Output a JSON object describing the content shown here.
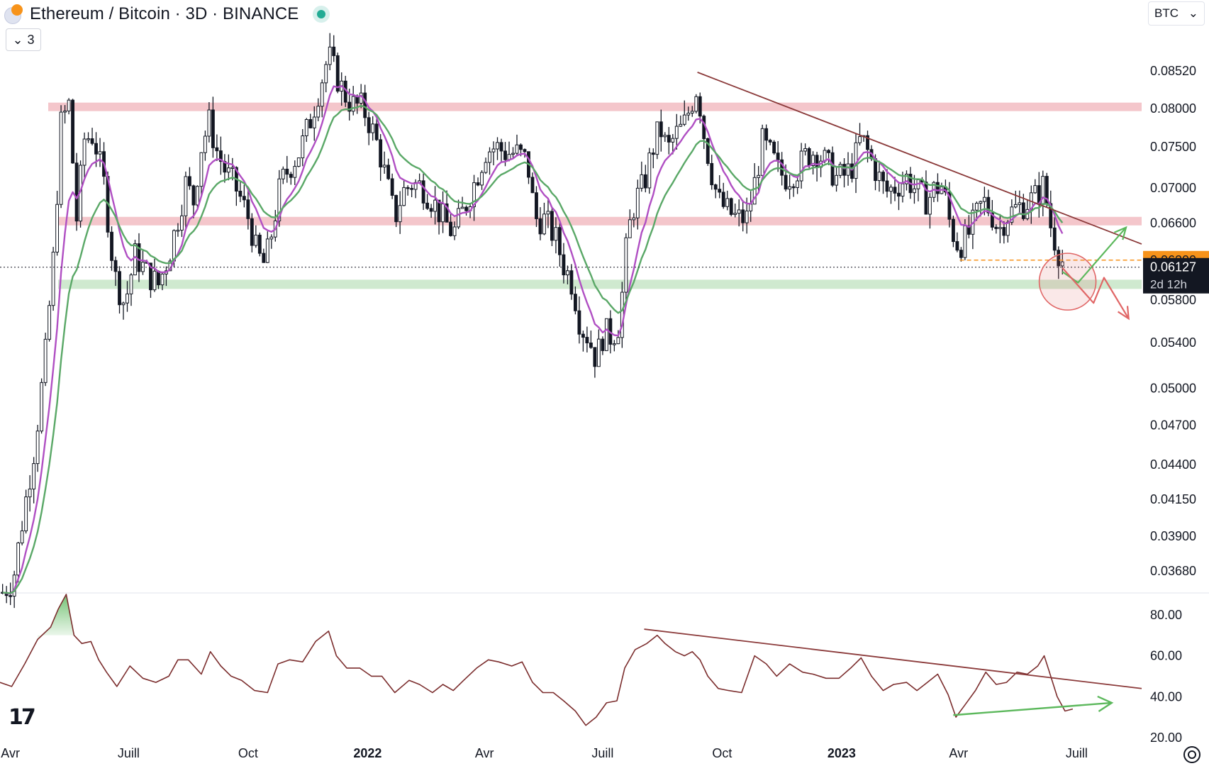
{
  "header": {
    "title": "Ethereum / Bitcoin · 3D · BINANCE",
    "indicator_count": "3",
    "currency": "BTC"
  },
  "colors": {
    "ema_fast": "#b04fc3",
    "ema_slow": "#5aa867",
    "resistance_zone": "#f4c6cb",
    "support_zone": "#cfe9cf",
    "trendline": "#8b3a3a",
    "rsi_line": "#7b2d2d",
    "bullish_arrow": "#5cb85c",
    "bearish_arrow": "#e06666",
    "price_label_orange": "#f7931a",
    "price_label_black": "#131722"
  },
  "chart_data": [
    {
      "type": "candlestick",
      "title": "Ethereum / Bitcoin · 3D · BINANCE",
      "scale": "log",
      "ylim": [
        0.0355,
        0.0915
      ],
      "y_ticks": [
        "0.08520",
        "0.08000",
        "0.07500",
        "0.07000",
        "0.06600",
        "0.05800",
        "0.05400",
        "0.05000",
        "0.04700",
        "0.04400",
        "0.04150",
        "0.03900",
        "0.03680"
      ],
      "x_ticks": [
        "Avr",
        "Juill",
        "Oct",
        "2022",
        "Avr",
        "Juill",
        "Oct",
        "2023",
        "Avr",
        "Juill"
      ],
      "x_range": [
        "2021-03-24",
        "2023-08-20"
      ],
      "price_path": [
        [
          "2021-03-26",
          0.0355
        ],
        [
          "2021-04-03",
          0.0362
        ],
        [
          "2021-04-12",
          0.041
        ],
        [
          "2021-04-20",
          0.0455
        ],
        [
          "2021-04-28",
          0.053
        ],
        [
          "2021-05-04",
          0.062
        ],
        [
          "2021-05-10",
          0.078
        ],
        [
          "2021-05-16",
          0.0805
        ],
        [
          "2021-05-22",
          0.0665
        ],
        [
          "2021-05-28",
          0.076
        ],
        [
          "2021-06-04",
          0.0765
        ],
        [
          "2021-06-12",
          0.0705
        ],
        [
          "2021-06-20",
          0.0605
        ],
        [
          "2021-06-28",
          0.0575
        ],
        [
          "2021-07-06",
          0.0625
        ],
        [
          "2021-07-16",
          0.0605
        ],
        [
          "2021-07-24",
          0.0595
        ],
        [
          "2021-08-01",
          0.0625
        ],
        [
          "2021-08-08",
          0.0665
        ],
        [
          "2021-08-14",
          0.0705
        ],
        [
          "2021-08-20",
          0.0685
        ],
        [
          "2021-08-26",
          0.075
        ],
        [
          "2021-09-01",
          0.0782
        ],
        [
          "2021-09-07",
          0.0745
        ],
        [
          "2021-09-14",
          0.0718
        ],
        [
          "2021-09-20",
          0.0705
        ],
        [
          "2021-09-26",
          0.0685
        ],
        [
          "2021-10-02",
          0.0663
        ],
        [
          "2021-10-08",
          0.0625
        ],
        [
          "2021-10-14",
          0.0615
        ],
        [
          "2021-10-20",
          0.0655
        ],
        [
          "2021-10-26",
          0.0705
        ],
        [
          "2021-11-02",
          0.0725
        ],
        [
          "2021-11-10",
          0.0745
        ],
        [
          "2021-11-18",
          0.0785
        ],
        [
          "2021-11-26",
          0.0835
        ],
        [
          "2021-12-02",
          0.0875
        ],
        [
          "2021-12-08",
          0.0845
        ],
        [
          "2021-12-14",
          0.082
        ],
        [
          "2021-12-20",
          0.0805
        ],
        [
          "2021-12-28",
          0.0802
        ],
        [
          "2022-01-04",
          0.0775
        ],
        [
          "2022-01-10",
          0.0745
        ],
        [
          "2022-01-16",
          0.0705
        ],
        [
          "2022-01-22",
          0.0665
        ],
        [
          "2022-01-28",
          0.0695
        ],
        [
          "2022-02-04",
          0.0705
        ],
        [
          "2022-02-12",
          0.0702
        ],
        [
          "2022-02-20",
          0.0685
        ],
        [
          "2022-02-28",
          0.0665
        ],
        [
          "2022-03-08",
          0.0648
        ],
        [
          "2022-03-16",
          0.0675
        ],
        [
          "2022-03-24",
          0.0705
        ],
        [
          "2022-04-02",
          0.0745
        ],
        [
          "2022-04-10",
          0.075
        ],
        [
          "2022-04-18",
          0.0742
        ],
        [
          "2022-04-26",
          0.0742
        ],
        [
          "2022-05-04",
          0.0732
        ],
        [
          "2022-05-10",
          0.0665
        ],
        [
          "2022-05-18",
          0.0663
        ],
        [
          "2022-05-26",
          0.0642
        ],
        [
          "2022-06-01",
          0.0615
        ],
        [
          "2022-06-08",
          0.0595
        ],
        [
          "2022-06-14",
          0.0555
        ],
        [
          "2022-06-20",
          0.0545
        ],
        [
          "2022-06-26",
          0.0525
        ],
        [
          "2022-07-02",
          0.055
        ],
        [
          "2022-07-08",
          0.0545
        ],
        [
          "2022-07-14",
          0.0558
        ],
        [
          "2022-07-20",
          0.0645
        ],
        [
          "2022-07-26",
          0.0685
        ],
        [
          "2022-08-02",
          0.0705
        ],
        [
          "2022-08-08",
          0.0745
        ],
        [
          "2022-08-14",
          0.0775
        ],
        [
          "2022-08-20",
          0.0745
        ],
        [
          "2022-08-26",
          0.0765
        ],
        [
          "2022-09-01",
          0.0775
        ],
        [
          "2022-09-07",
          0.0805
        ],
        [
          "2022-09-12",
          0.0832
        ],
        [
          "2022-09-16",
          0.0775
        ],
        [
          "2022-09-22",
          0.0725
        ],
        [
          "2022-09-28",
          0.0685
        ],
        [
          "2022-10-04",
          0.0675
        ],
        [
          "2022-10-12",
          0.0665
        ],
        [
          "2022-10-20",
          0.0665
        ],
        [
          "2022-10-26",
          0.0705
        ],
        [
          "2022-11-01",
          0.0755
        ],
        [
          "2022-11-08",
          0.0738
        ],
        [
          "2022-11-14",
          0.0718
        ],
        [
          "2022-11-20",
          0.0712
        ],
        [
          "2022-11-28",
          0.0722
        ],
        [
          "2022-12-04",
          0.0738
        ],
        [
          "2022-12-12",
          0.0745
        ],
        [
          "2022-12-20",
          0.073
        ],
        [
          "2022-12-28",
          0.0712
        ],
        [
          "2023-01-04",
          0.0715
        ],
        [
          "2023-01-10",
          0.0728
        ],
        [
          "2023-01-16",
          0.0762
        ],
        [
          "2023-01-22",
          0.074
        ],
        [
          "2023-01-28",
          0.0718
        ],
        [
          "2023-02-04",
          0.0695
        ],
        [
          "2023-02-12",
          0.0702
        ],
        [
          "2023-02-20",
          0.0712
        ],
        [
          "2023-02-28",
          0.0696
        ],
        [
          "2023-03-08",
          0.0685
        ],
        [
          "2023-03-14",
          0.07
        ],
        [
          "2023-03-20",
          0.0702
        ],
        [
          "2023-03-26",
          0.0655
        ],
        [
          "2023-04-01",
          0.0635
        ],
        [
          "2023-04-08",
          0.0645
        ],
        [
          "2023-04-14",
          0.0665
        ],
        [
          "2023-04-20",
          0.0685
        ],
        [
          "2023-04-26",
          0.0672
        ],
        [
          "2023-05-02",
          0.0652
        ],
        [
          "2023-05-08",
          0.0668
        ],
        [
          "2023-05-14",
          0.0675
        ],
        [
          "2023-05-20",
          0.068
        ],
        [
          "2023-05-26",
          0.0685
        ],
        [
          "2023-06-01",
          0.0692
        ],
        [
          "2023-06-06",
          0.0705
        ],
        [
          "2023-06-10",
          0.0662
        ],
        [
          "2023-06-14",
          0.0642
        ],
        [
          "2023-06-18",
          0.0625
        ],
        [
          "2023-06-22",
          0.0613
        ]
      ],
      "last_price": "0.06127",
      "countdown": "2d 12h",
      "alert_price": "0.06200",
      "resistance_zones": [
        0.0802,
        0.0662
      ],
      "support_zone": 0.0595,
      "trendline": [
        [
          "2022-09-12",
          0.085
        ],
        [
          "2023-08-20",
          0.0637
        ]
      ],
      "moving_averages": [
        {
          "color": "#b04fc3"
        },
        {
          "color": "#5aa867"
        }
      ],
      "projections": {
        "bullish": [
          [
            "2023-06-20",
            0.0608
          ],
          [
            "2023-07-02",
            0.0597
          ],
          [
            "2023-08-08",
            0.0655
          ]
        ],
        "bearish": [
          [
            "2023-06-20",
            0.0612
          ],
          [
            "2023-07-14",
            0.0577
          ],
          [
            "2023-07-22",
            0.0602
          ],
          [
            "2023-08-10",
            0.0562
          ]
        ]
      },
      "circle_marker": [
        "2023-06-24",
        0.0598
      ]
    },
    {
      "type": "line",
      "title": "",
      "ylim": [
        20,
        90
      ],
      "y_ticks": [
        "80.00",
        "60.00",
        "40.00",
        "20.00"
      ],
      "x_range": [
        "2021-03-24",
        "2023-08-20"
      ],
      "values_path": [
        [
          "2021-03-24",
          47
        ],
        [
          "2021-04-02",
          45
        ],
        [
          "2021-04-12",
          56
        ],
        [
          "2021-04-22",
          68
        ],
        [
          "2021-05-02",
          74
        ],
        [
          "2021-05-08",
          83
        ],
        [
          "2021-05-14",
          90
        ],
        [
          "2021-05-20",
          70
        ],
        [
          "2021-05-26",
          66
        ],
        [
          "2021-06-02",
          67
        ],
        [
          "2021-06-08",
          58
        ],
        [
          "2021-06-14",
          52
        ],
        [
          "2021-06-22",
          45
        ],
        [
          "2021-07-02",
          55
        ],
        [
          "2021-07-12",
          49
        ],
        [
          "2021-07-22",
          47
        ],
        [
          "2021-08-01",
          50
        ],
        [
          "2021-08-08",
          58
        ],
        [
          "2021-08-16",
          58
        ],
        [
          "2021-08-26",
          51
        ],
        [
          "2021-09-02",
          62
        ],
        [
          "2021-09-10",
          55
        ],
        [
          "2021-09-18",
          50
        ],
        [
          "2021-09-26",
          48
        ],
        [
          "2021-10-06",
          43
        ],
        [
          "2021-10-16",
          42
        ],
        [
          "2021-10-24",
          56
        ],
        [
          "2021-11-02",
          58
        ],
        [
          "2021-11-12",
          57
        ],
        [
          "2021-11-22",
          67
        ],
        [
          "2021-12-02",
          72
        ],
        [
          "2021-12-08",
          60
        ],
        [
          "2021-12-16",
          54
        ],
        [
          "2021-12-26",
          54
        ],
        [
          "2022-01-04",
          50
        ],
        [
          "2022-01-12",
          50
        ],
        [
          "2022-01-22",
          42
        ],
        [
          "2022-02-02",
          48
        ],
        [
          "2022-02-10",
          46
        ],
        [
          "2022-02-20",
          42
        ],
        [
          "2022-02-28",
          46
        ],
        [
          "2022-03-08",
          43
        ],
        [
          "2022-03-16",
          48
        ],
        [
          "2022-03-26",
          54
        ],
        [
          "2022-04-04",
          58
        ],
        [
          "2022-04-12",
          57
        ],
        [
          "2022-04-22",
          55
        ],
        [
          "2022-04-30",
          57
        ],
        [
          "2022-05-08",
          47
        ],
        [
          "2022-05-16",
          42
        ],
        [
          "2022-05-24",
          42
        ],
        [
          "2022-06-01",
          38
        ],
        [
          "2022-06-10",
          33
        ],
        [
          "2022-06-18",
          26
        ],
        [
          "2022-06-26",
          30
        ],
        [
          "2022-07-04",
          37
        ],
        [
          "2022-07-12",
          38
        ],
        [
          "2022-07-18",
          54
        ],
        [
          "2022-07-26",
          63
        ],
        [
          "2022-08-04",
          66
        ],
        [
          "2022-08-12",
          70
        ],
        [
          "2022-08-18",
          66
        ],
        [
          "2022-08-26",
          62
        ],
        [
          "2022-09-02",
          60
        ],
        [
          "2022-09-08",
          62
        ],
        [
          "2022-09-14",
          58
        ],
        [
          "2022-09-20",
          50
        ],
        [
          "2022-09-28",
          44
        ],
        [
          "2022-10-06",
          43
        ],
        [
          "2022-10-16",
          42
        ],
        [
          "2022-10-26",
          60
        ],
        [
          "2022-11-04",
          56
        ],
        [
          "2022-11-12",
          50
        ],
        [
          "2022-11-22",
          56
        ],
        [
          "2022-12-02",
          52
        ],
        [
          "2022-12-10",
          51
        ],
        [
          "2022-12-20",
          49
        ],
        [
          "2022-12-30",
          49
        ],
        [
          "2023-01-08",
          54
        ],
        [
          "2023-01-16",
          59
        ],
        [
          "2023-01-24",
          50
        ],
        [
          "2023-02-02",
          43
        ],
        [
          "2023-02-10",
          46
        ],
        [
          "2023-02-20",
          47
        ],
        [
          "2023-02-28",
          43
        ],
        [
          "2023-03-08",
          47
        ],
        [
          "2023-03-16",
          51
        ],
        [
          "2023-03-24",
          41
        ],
        [
          "2023-03-30",
          30
        ],
        [
          "2023-04-06",
          36
        ],
        [
          "2023-04-14",
          43
        ],
        [
          "2023-04-22",
          52
        ],
        [
          "2023-04-30",
          46
        ],
        [
          "2023-05-08",
          47
        ],
        [
          "2023-05-16",
          52
        ],
        [
          "2023-05-24",
          51
        ],
        [
          "2023-06-01",
          55
        ],
        [
          "2023-06-06",
          60
        ],
        [
          "2023-06-10",
          52
        ],
        [
          "2023-06-16",
          40
        ],
        [
          "2023-06-22",
          33
        ],
        [
          "2023-06-28",
          34
        ]
      ],
      "trendline": [
        [
          "2022-08-02",
          73
        ],
        [
          "2023-08-20",
          44
        ]
      ],
      "divergence_arrow": [
        [
          "2023-03-28",
          31
        ],
        [
          "2023-07-28",
          37
        ]
      ],
      "overbought_fill_threshold": 70
    }
  ]
}
